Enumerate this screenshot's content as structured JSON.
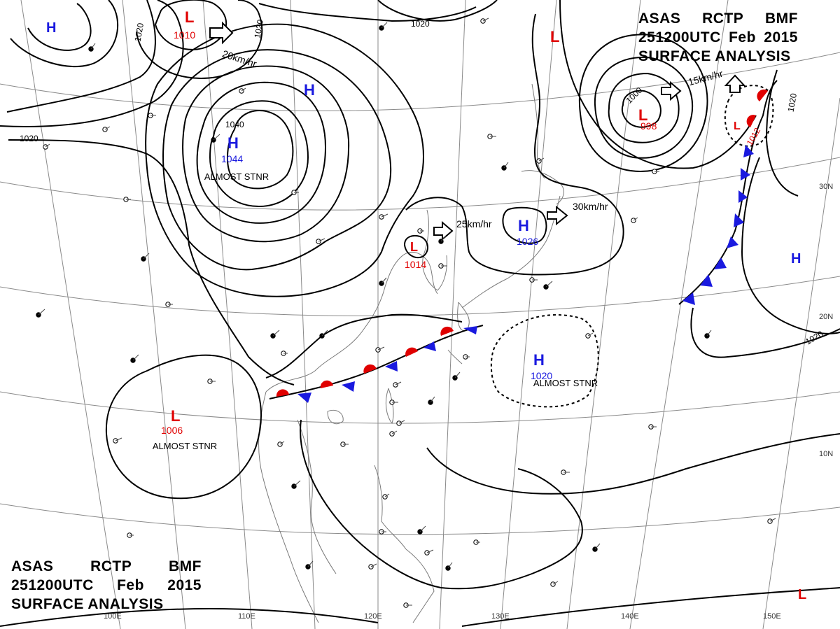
{
  "header": {
    "line1": [
      "ASAS",
      "RCTP",
      "BMF"
    ],
    "line2": [
      "251200UTC",
      "Feb",
      "2015"
    ],
    "line3": "SURFACE ANALYSIS"
  },
  "colors": {
    "high": "#1a1adf",
    "low": "#e00000",
    "isobar": "#000000",
    "grid": "#777777",
    "coast": "#888888"
  },
  "grid": {
    "longitudes": [
      "100E",
      "110E",
      "120E",
      "130E",
      "140E",
      "150E"
    ],
    "latitudes": [
      "10N",
      "20N",
      "30N"
    ]
  },
  "pressure_systems": [
    {
      "type": "H",
      "value": "",
      "id": "h-nw"
    },
    {
      "type": "L",
      "value": "1010",
      "id": "l-n"
    },
    {
      "type": "H",
      "value": "",
      "id": "h-mongolia"
    },
    {
      "type": "H",
      "value": "1044",
      "id": "h-siberia"
    },
    {
      "type": "L",
      "value": "1014",
      "id": "l-korea"
    },
    {
      "type": "H",
      "value": "1026",
      "id": "h-japan-sea"
    },
    {
      "type": "L",
      "value": "",
      "id": "l-okhotsk"
    },
    {
      "type": "L",
      "value": "998",
      "id": "l-kuril"
    },
    {
      "type": "L",
      "value": "1012",
      "id": "l-pacific-ne"
    },
    {
      "type": "H",
      "value": "",
      "id": "h-pacific-e"
    },
    {
      "type": "H",
      "value": "1020",
      "id": "h-philippine-sea"
    },
    {
      "type": "L",
      "value": "1006",
      "id": "l-indochina"
    },
    {
      "type": "L",
      "value": "",
      "id": "l-se"
    }
  ],
  "isobar_labels": [
    "1020",
    "1020",
    "1020",
    "1020",
    "1040",
    "1000",
    "1020",
    "1020"
  ],
  "motion_labels": [
    "20km/hr",
    "25km/hr",
    "30km/hr",
    "15km/hr"
  ],
  "annotations": [
    "ALMOST STNR",
    "ALMOST STNR",
    "ALMOST STNR"
  ]
}
